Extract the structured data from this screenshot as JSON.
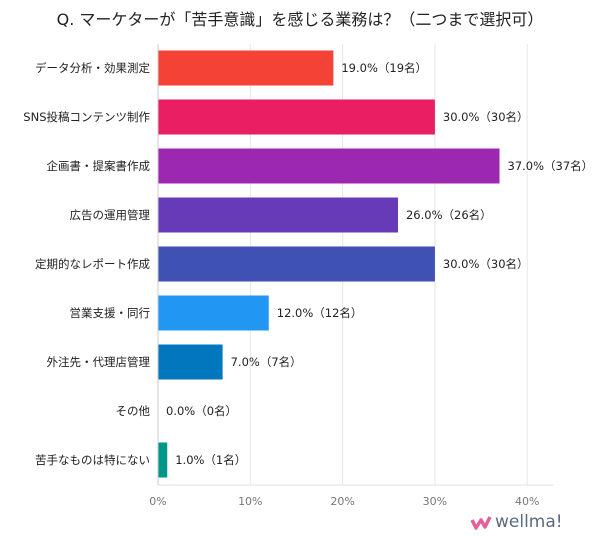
{
  "chart_data": {
    "type": "bar",
    "orientation": "horizontal",
    "title": "Q. マーケターが「苦手意識」を感じる業務は？（二つまで選択可）",
    "categories": [
      "データ分析・効果測定",
      "SNS投稿コンテンツ制作",
      "企画書・提案書作成",
      "広告の運用管理",
      "定期的なレポート作成",
      "営業支援・同行",
      "外注先・代理店管理",
      "その他",
      "苦手なものは特にない"
    ],
    "values": [
      19.0,
      30.0,
      37.0,
      26.0,
      30.0,
      12.0,
      7.0,
      0.0,
      1.0
    ],
    "data_labels": [
      "19.0%（19名）",
      "30.0%（30名）",
      "37.0%（37名）",
      "26.0%（26名）",
      "30.0%（30名）",
      "12.0%（12名）",
      "7.0%（7名）",
      "0.0%（0名）",
      "1.0%（1名）"
    ],
    "colors": [
      "#F44336",
      "#E91E63",
      "#9C27B0",
      "#673AB7",
      "#3F51B5",
      "#2196F3",
      "#0277BD",
      "#00BCD4",
      "#009688"
    ],
    "xlim": [
      0,
      42
    ],
    "x_ticks": [
      "0%",
      "10%",
      "20%",
      "30%",
      "40%"
    ],
    "x_tick_values": [
      0,
      10,
      20,
      30,
      40
    ],
    "grid": true,
    "xlabel": "",
    "ylabel": ""
  },
  "logo": {
    "text": "wellma!"
  }
}
